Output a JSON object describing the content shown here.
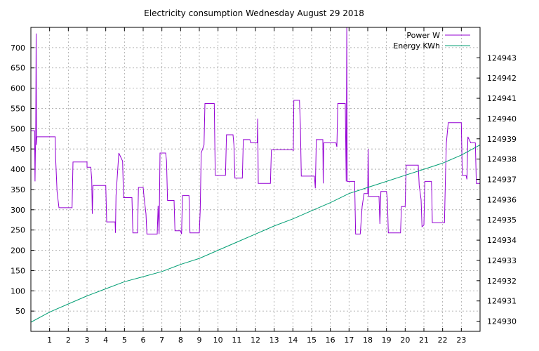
{
  "chart_data": {
    "type": "line",
    "title": "Electricity consumption Wednesday August 29 2018",
    "xlabel": "",
    "ylabel": "",
    "y2label": "",
    "grid": true,
    "legend_position": "top-right",
    "xlim": [
      0,
      24
    ],
    "ylim": [
      0,
      750
    ],
    "y2lim": [
      124929.5,
      124944.5
    ],
    "x_ticks": [
      1,
      2,
      3,
      4,
      5,
      6,
      7,
      8,
      9,
      10,
      11,
      12,
      13,
      14,
      15,
      16,
      17,
      18,
      19,
      20,
      21,
      22,
      23
    ],
    "y_ticks": [
      50,
      100,
      150,
      200,
      250,
      300,
      350,
      400,
      450,
      500,
      550,
      600,
      650,
      700
    ],
    "y2_ticks": [
      124930,
      124931,
      124932,
      124933,
      124934,
      124935,
      124936,
      124937,
      124938,
      124939,
      124940,
      124941,
      124942,
      124943
    ],
    "series": [
      {
        "name": "Power W",
        "axis": "y",
        "color": "#9400d3",
        "points": [
          [
            0,
            495
          ],
          [
            0.2,
            495
          ],
          [
            0.22,
            370
          ],
          [
            0.24,
            440
          ],
          [
            0.26,
            480
          ],
          [
            0.28,
            735
          ],
          [
            0.3,
            460
          ],
          [
            0.32,
            480
          ],
          [
            1.3,
            480
          ],
          [
            1.32,
            430
          ],
          [
            1.4,
            345
          ],
          [
            1.5,
            305
          ],
          [
            2.2,
            305
          ],
          [
            2.25,
            418
          ],
          [
            3.0,
            418
          ],
          [
            3.0,
            405
          ],
          [
            3.2,
            405
          ],
          [
            3.25,
            375
          ],
          [
            3.28,
            290
          ],
          [
            3.32,
            360
          ],
          [
            4.0,
            360
          ],
          [
            4.05,
            270
          ],
          [
            4.5,
            270
          ],
          [
            4.52,
            243
          ],
          [
            4.55,
            335
          ],
          [
            4.7,
            440
          ],
          [
            4.9,
            420
          ],
          [
            4.95,
            330
          ],
          [
            5.4,
            330
          ],
          [
            5.45,
            243
          ],
          [
            5.7,
            243
          ],
          [
            5.75,
            355
          ],
          [
            6.0,
            355
          ],
          [
            6.05,
            330
          ],
          [
            6.15,
            290
          ],
          [
            6.2,
            240
          ],
          [
            6.75,
            240
          ],
          [
            6.8,
            310
          ],
          [
            6.85,
            240
          ],
          [
            6.9,
            440
          ],
          [
            7.2,
            440
          ],
          [
            7.25,
            420
          ],
          [
            7.3,
            323
          ],
          [
            7.65,
            323
          ],
          [
            7.7,
            248
          ],
          [
            8.0,
            248
          ],
          [
            8.05,
            240
          ],
          [
            8.1,
            335
          ],
          [
            8.45,
            335
          ],
          [
            8.5,
            243
          ],
          [
            9.0,
            243
          ],
          [
            9.05,
            300
          ],
          [
            9.1,
            440
          ],
          [
            9.25,
            460
          ],
          [
            9.3,
            562
          ],
          [
            9.8,
            562
          ],
          [
            9.85,
            385
          ],
          [
            10.4,
            385
          ],
          [
            10.45,
            485
          ],
          [
            10.8,
            485
          ],
          [
            10.85,
            460
          ],
          [
            10.9,
            378
          ],
          [
            11.3,
            378
          ],
          [
            11.35,
            473
          ],
          [
            11.7,
            473
          ],
          [
            11.75,
            465
          ],
          [
            12.1,
            465
          ],
          [
            12.12,
            525
          ],
          [
            12.15,
            365
          ],
          [
            12.8,
            365
          ],
          [
            12.85,
            448
          ],
          [
            14.0,
            448
          ],
          [
            14.02,
            445
          ],
          [
            14.05,
            570
          ],
          [
            14.35,
            570
          ],
          [
            14.4,
            508
          ],
          [
            14.45,
            383
          ],
          [
            15.15,
            383
          ],
          [
            15.2,
            353
          ],
          [
            15.25,
            473
          ],
          [
            15.6,
            473
          ],
          [
            15.62,
            365
          ],
          [
            15.65,
            465
          ],
          [
            16.3,
            465
          ],
          [
            16.35,
            455
          ],
          [
            16.4,
            562
          ],
          [
            16.8,
            562
          ],
          [
            16.82,
            480
          ],
          [
            16.85,
            370
          ],
          [
            16.88,
            780
          ],
          [
            16.9,
            370
          ],
          [
            17.3,
            370
          ],
          [
            17.35,
            240
          ],
          [
            17.6,
            240
          ],
          [
            17.7,
            308
          ],
          [
            17.8,
            340
          ],
          [
            18.0,
            340
          ],
          [
            18.02,
            450
          ],
          [
            18.05,
            333
          ],
          [
            18.6,
            333
          ],
          [
            18.65,
            265
          ],
          [
            18.7,
            345
          ],
          [
            19.0,
            345
          ],
          [
            19.05,
            325
          ],
          [
            19.1,
            243
          ],
          [
            19.75,
            243
          ],
          [
            19.8,
            308
          ],
          [
            20.0,
            308
          ],
          [
            20.05,
            410
          ],
          [
            20.7,
            410
          ],
          [
            20.75,
            360
          ],
          [
            20.85,
            325
          ],
          [
            20.9,
            258
          ],
          [
            21.0,
            262
          ],
          [
            21.05,
            370
          ],
          [
            21.4,
            370
          ],
          [
            21.42,
            345
          ],
          [
            21.45,
            268
          ],
          [
            22.1,
            268
          ],
          [
            22.15,
            380
          ],
          [
            22.2,
            465
          ],
          [
            22.3,
            515
          ],
          [
            23.0,
            515
          ],
          [
            23.05,
            385
          ],
          [
            23.25,
            385
          ],
          [
            23.3,
            375
          ],
          [
            23.35,
            480
          ],
          [
            23.5,
            465
          ],
          [
            23.75,
            465
          ],
          [
            23.8,
            365
          ],
          [
            24.0,
            365
          ]
        ]
      },
      {
        "name": "Energy KWh",
        "axis": "y2",
        "color": "#009e73",
        "points": [
          [
            0,
            124929.95
          ],
          [
            1,
            124930.45
          ],
          [
            2,
            124930.85
          ],
          [
            3,
            124931.25
          ],
          [
            4,
            124931.6
          ],
          [
            5,
            124931.95
          ],
          [
            6,
            124932.2
          ],
          [
            7,
            124932.45
          ],
          [
            8,
            124932.8
          ],
          [
            9,
            124933.1
          ],
          [
            10,
            124933.5
          ],
          [
            11,
            124933.9
          ],
          [
            12,
            124934.3
          ],
          [
            13,
            124934.7
          ],
          [
            14,
            124935.05
          ],
          [
            15,
            124935.45
          ],
          [
            16,
            124935.85
          ],
          [
            17,
            124936.3
          ],
          [
            18,
            124936.6
          ],
          [
            19,
            124936.9
          ],
          [
            20,
            124937.2
          ],
          [
            21,
            124937.5
          ],
          [
            22,
            124937.8
          ],
          [
            23,
            124938.2
          ],
          [
            24,
            124938.7
          ]
        ]
      }
    ]
  }
}
